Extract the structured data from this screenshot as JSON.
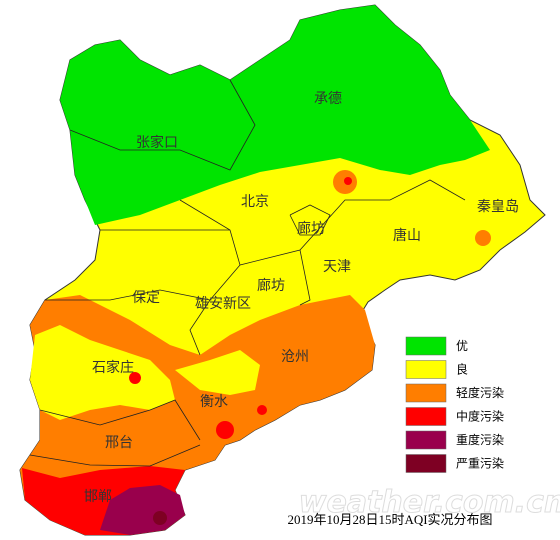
{
  "title": "2019年10月28日15时AQI实况分布图",
  "watermark": "weather.com.cn",
  "legend": [
    {
      "label": "优",
      "color": "#00e400"
    },
    {
      "label": "良",
      "color": "#ffff00"
    },
    {
      "label": "轻度污染",
      "color": "#ff7e00"
    },
    {
      "label": "中度污染",
      "color": "#ff0000"
    },
    {
      "label": "重度污染",
      "color": "#99004c"
    },
    {
      "label": "严重污染",
      "color": "#7e0023"
    }
  ],
  "cities": [
    {
      "name": "承德"
    },
    {
      "name": "张家口"
    },
    {
      "name": "北京"
    },
    {
      "name": "廊坊"
    },
    {
      "name": "秦皇岛"
    },
    {
      "name": "唐山"
    },
    {
      "name": "天津"
    },
    {
      "name": "廊坊"
    },
    {
      "name": "保定"
    },
    {
      "name": "雄安新区"
    },
    {
      "name": "沧州"
    },
    {
      "name": "石家庄"
    },
    {
      "name": "衡水"
    },
    {
      "name": "邢台"
    },
    {
      "name": "邯郸"
    }
  ]
}
